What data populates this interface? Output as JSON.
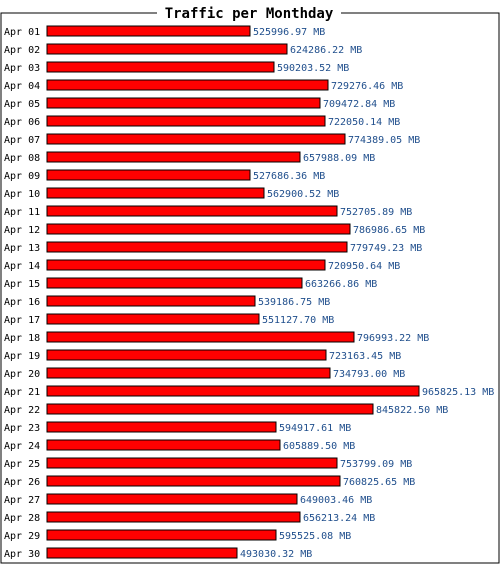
{
  "chart_data": {
    "type": "bar",
    "orientation": "horizontal",
    "title": "Traffic per Monthday",
    "unit": "MB",
    "categories": [
      "Apr 01",
      "Apr 02",
      "Apr 03",
      "Apr 04",
      "Apr 05",
      "Apr 06",
      "Apr 07",
      "Apr 08",
      "Apr 09",
      "Apr 10",
      "Apr 11",
      "Apr 12",
      "Apr 13",
      "Apr 14",
      "Apr 15",
      "Apr 16",
      "Apr 17",
      "Apr 18",
      "Apr 19",
      "Apr 20",
      "Apr 21",
      "Apr 22",
      "Apr 23",
      "Apr 24",
      "Apr 25",
      "Apr 26",
      "Apr 27",
      "Apr 28",
      "Apr 29",
      "Apr 30"
    ],
    "values": [
      525996.97,
      624286.22,
      590203.52,
      729276.46,
      709472.84,
      722050.14,
      774389.05,
      657988.09,
      527686.36,
      562900.52,
      752705.89,
      786986.65,
      779749.23,
      720950.64,
      663266.86,
      539186.75,
      551127.7,
      796993.22,
      723163.45,
      734793.0,
      965825.13,
      845822.5,
      594917.61,
      605889.5,
      753799.09,
      760825.65,
      649003.46,
      656213.24,
      595525.08,
      493030.32
    ],
    "value_labels": [
      "525996.97 MB",
      "624286.22 MB",
      "590203.52 MB",
      "729276.46 MB",
      "709472.84 MB",
      "722050.14 MB",
      "774389.05 MB",
      "657988.09 MB",
      "527686.36 MB",
      "562900.52 MB",
      "752705.89 MB",
      "786986.65 MB",
      "779749.23 MB",
      "720950.64 MB",
      "663266.86 MB",
      "539186.75 MB",
      "551127.70 MB",
      "796993.22 MB",
      "723163.45 MB",
      "734793.00 MB",
      "965825.13 MB",
      "845822.50 MB",
      "594917.61 MB",
      "605889.50 MB",
      "753799.09 MB",
      "760825.65 MB",
      "649003.46 MB",
      "656213.24 MB",
      "595525.08 MB",
      "493030.32 MB"
    ],
    "xlim": [
      0,
      965825.13
    ],
    "grid": false,
    "legend": false,
    "colors": {
      "bar_fill": "#ff0000",
      "bar_stroke": "#000000",
      "value_text": "#1f4e8c",
      "category_text": "#000000",
      "frame": "#000000",
      "background": "#ffffff"
    }
  }
}
